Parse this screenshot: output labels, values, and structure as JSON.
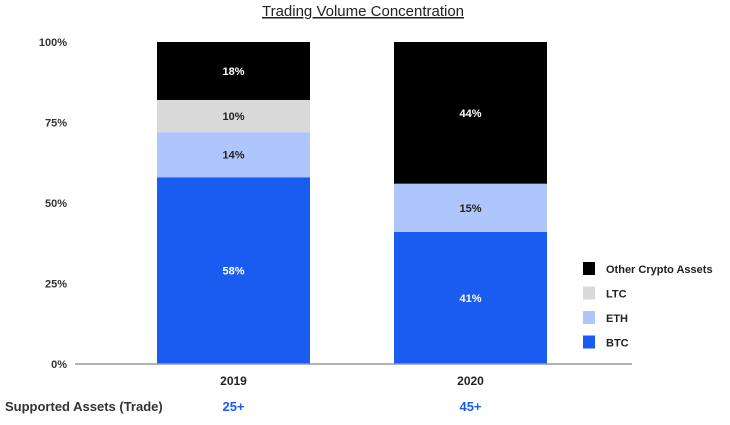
{
  "chart_data": {
    "type": "bar",
    "stacked": true,
    "title": "Trading Volume Concentration",
    "xlabel": "",
    "ylabel": "",
    "ylim": [
      0,
      100
    ],
    "y_ticks": [
      "0%",
      "25%",
      "50%",
      "75%",
      "100%"
    ],
    "categories": [
      "2019",
      "2020"
    ],
    "series": [
      {
        "name": "BTC",
        "values": [
          58,
          41
        ],
        "labels": [
          "58%",
          "41%"
        ],
        "color": "#1a5cf0",
        "label_color": "#ffffff"
      },
      {
        "name": "ETH",
        "values": [
          14,
          15
        ],
        "labels": [
          "14%",
          "15%"
        ],
        "color": "#aec6fb",
        "label_color": "#222222"
      },
      {
        "name": "LTC",
        "values": [
          10,
          0
        ],
        "labels": [
          "10%",
          ""
        ],
        "color": "#d9d9d9",
        "label_color": "#222222"
      },
      {
        "name": "Other Crypto Assets",
        "values": [
          18,
          44
        ],
        "labels": [
          "18%",
          "44%"
        ],
        "color": "#000000",
        "label_color": "#ffffff"
      }
    ],
    "legend": {
      "placement": "right",
      "order": [
        "Other Crypto Assets",
        "LTC",
        "ETH",
        "BTC"
      ]
    },
    "grid": false,
    "footer_row": {
      "label": "Supported Assets (Trade)",
      "values": [
        "25+",
        "45+"
      ],
      "value_color": "#1a5cf0"
    }
  }
}
